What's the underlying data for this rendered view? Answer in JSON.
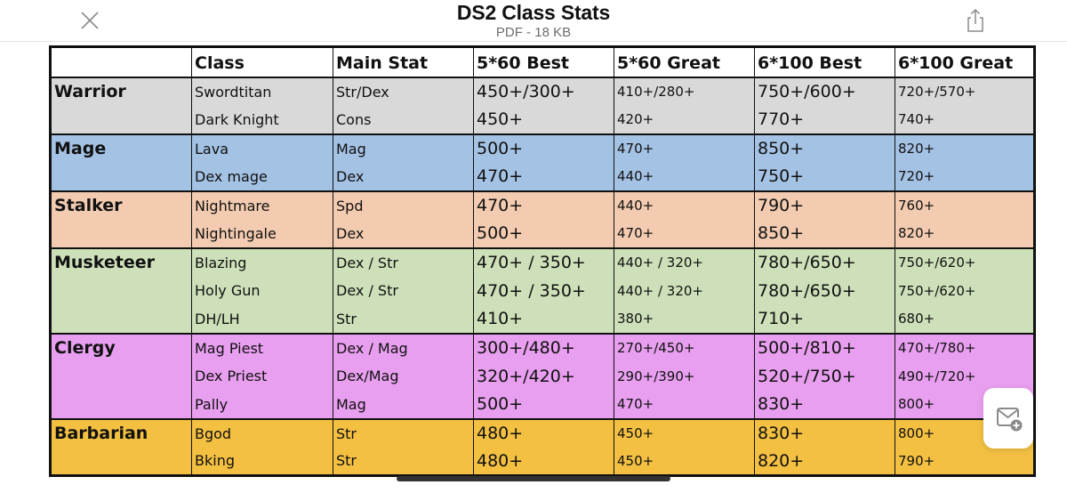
{
  "topbar": {
    "title": "DS2 Class Stats",
    "subtitle": "PDF - 18 KB",
    "close_icon": "close-icon",
    "share_icon": "share-icon"
  },
  "floating": {
    "mail_icon": "mail-add-icon"
  },
  "table": {
    "headers": [
      "",
      "Class",
      "Main Stat",
      "5*60 Best",
      "5*60 Great",
      "6*100 Best",
      "6*100 Great"
    ],
    "groups": [
      {
        "name": "Warrior",
        "color": "#d9d9d9",
        "rows": [
          {
            "class": "Swordtitan",
            "stat": "Str/Dex",
            "best60": "450+/300+",
            "great60": "410+/280+",
            "best100": "750+/600+",
            "great100": "720+/570+"
          },
          {
            "class": "Dark Knight",
            "stat": "Cons",
            "best60": "450+",
            "great60": "420+",
            "best100": "770+",
            "great100": "740+"
          }
        ]
      },
      {
        "name": "Mage",
        "color": "#a4c2e4",
        "rows": [
          {
            "class": "Lava",
            "stat": "Mag",
            "best60": "500+",
            "great60": "470+",
            "best100": "850+",
            "great100": "820+"
          },
          {
            "class": "Dex mage",
            "stat": "Dex",
            "best60": "470+",
            "great60": "440+",
            "best100": "750+",
            "great100": "720+"
          }
        ]
      },
      {
        "name": "Stalker",
        "color": "#f2cbb0",
        "rows": [
          {
            "class": "Nightmare",
            "stat": "Spd",
            "best60": "470+",
            "great60": "440+",
            "best100": "790+",
            "great100": "760+"
          },
          {
            "class": "Nightingale",
            "stat": "Dex",
            "best60": "500+",
            "great60": "470+",
            "best100": "850+",
            "great100": "820+"
          }
        ]
      },
      {
        "name": "Musketeer",
        "color": "#cde0b9",
        "rows": [
          {
            "class": "Blazing",
            "stat": "Dex / Str",
            "best60": "470+ / 350+",
            "great60": "440+ / 320+",
            "best100": "780+/650+",
            "great100": "750+/620+"
          },
          {
            "class": "Holy Gun",
            "stat": "Dex / Str",
            "best60": "470+ / 350+",
            "great60": "440+ / 320+",
            "best100": "780+/650+",
            "great100": "750+/620+"
          },
          {
            "class": "DH/LH",
            "stat": "Str",
            "best60": "410+",
            "great60": "380+",
            "best100": "710+",
            "great100": "680+"
          }
        ]
      },
      {
        "name": "Clergy",
        "color": "#e89fef",
        "rows": [
          {
            "class": "Mag Piest",
            "stat": "Dex / Mag",
            "best60": "300+/480+",
            "great60": "270+/450+",
            "best100": "500+/810+",
            "great100": "470+/780+"
          },
          {
            "class": "Dex Priest",
            "stat": "Dex/Mag",
            "best60": "320+/420+",
            "great60": "290+/390+",
            "best100": "520+/750+",
            "great100": "490+/720+"
          },
          {
            "class": "Pally",
            "stat": "Mag",
            "best60": "500+",
            "great60": "470+",
            "best100": "830+",
            "great100": "800+"
          }
        ]
      },
      {
        "name": "Barbarian",
        "color": "#f3c042",
        "rows": [
          {
            "class": "Bgod",
            "stat": "Str",
            "best60": "480+",
            "great60": "450+",
            "best100": "830+",
            "great100": "800+"
          },
          {
            "class": "Bking",
            "stat": "Str",
            "best60": "480+",
            "great60": "450+",
            "best100": "820+",
            "great100": "790+"
          }
        ]
      }
    ]
  }
}
